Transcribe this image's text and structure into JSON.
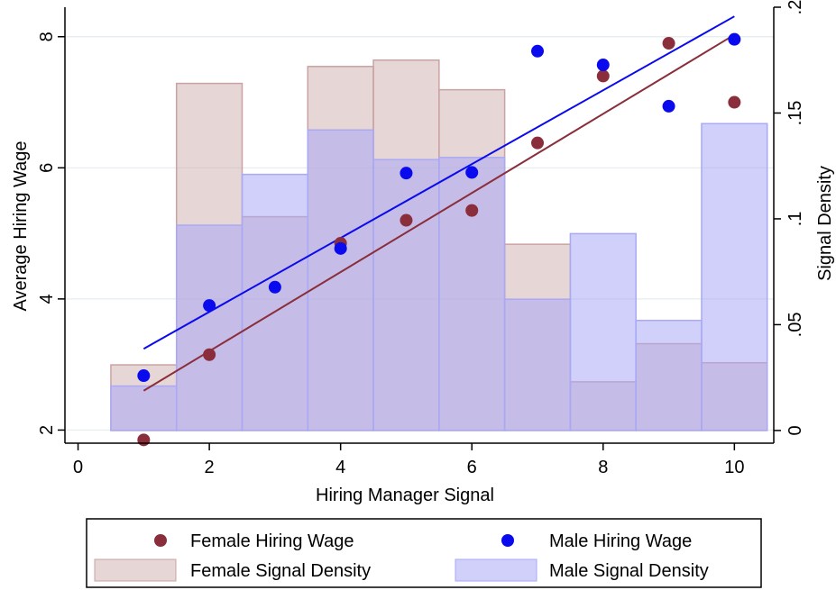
{
  "chart_data": {
    "type": "bar",
    "title": "",
    "xlabel": "Hiring Manager Signal",
    "ylabel": "Average Hiring Wage",
    "y2label": "Signal Density",
    "xlim": [
      -0.2,
      10.6
    ],
    "ylim": [
      1.8,
      8.45
    ],
    "y2lim": [
      -0.006,
      0.2
    ],
    "x_ticks": [
      0,
      2,
      4,
      6,
      8,
      10
    ],
    "x_tick_labels": [
      "0",
      "2",
      "4",
      "6",
      "8",
      "10"
    ],
    "y_ticks": [
      2,
      4,
      6,
      8
    ],
    "y_tick_labels": [
      "2",
      "4",
      "6",
      "8"
    ],
    "y2_ticks": [
      0,
      0.05,
      0.1,
      0.15,
      0.2
    ],
    "y2_tick_labels": [
      "0",
      ".05",
      ".1",
      ".15",
      ".2"
    ],
    "grid": "horizontal",
    "legend_position": "bottom",
    "categories": [
      1,
      2,
      3,
      4,
      5,
      6,
      7,
      8,
      9,
      10
    ],
    "density_series": [
      {
        "name": "Female Signal Density",
        "color": "#c9a3a3",
        "values": [
          0.031,
          0.164,
          0.101,
          0.172,
          0.175,
          0.161,
          0.088,
          0.023,
          0.041,
          0.032
        ]
      },
      {
        "name": "Male Signal Density",
        "color": "#a9a9f5",
        "values": [
          0.021,
          0.097,
          0.121,
          0.142,
          0.128,
          0.129,
          0.062,
          0.093,
          0.052,
          0.145
        ]
      }
    ],
    "scatter_series": [
      {
        "name": "Female Hiring Wage",
        "color": "#8b2e3b",
        "x": [
          1,
          2,
          4,
          5,
          6,
          7,
          8,
          9,
          10
        ],
        "y": [
          1.85,
          3.15,
          4.85,
          5.2,
          5.35,
          6.38,
          7.4,
          7.9,
          7.0
        ]
      },
      {
        "name": "Male Hiring Wage",
        "color": "#0a0aee",
        "x": [
          1,
          2,
          3,
          4,
          5,
          6,
          7,
          8,
          9,
          10
        ],
        "y": [
          2.83,
          3.9,
          4.18,
          4.77,
          5.92,
          5.93,
          7.78,
          7.57,
          6.94,
          7.96
        ]
      }
    ],
    "fit_lines": [
      {
        "name": "Female fit",
        "color": "#8b2e3b",
        "x": [
          1,
          10
        ],
        "y": [
          2.6,
          8.03
        ]
      },
      {
        "name": "Male fit",
        "color": "#0a0aee",
        "x": [
          1,
          10
        ],
        "y": [
          3.24,
          8.31
        ]
      }
    ]
  },
  "legend": {
    "female_wage": "Female Hiring Wage",
    "male_wage": "Male Hiring Wage",
    "female_density": "Female Signal Density",
    "male_density": "Male Signal Density"
  }
}
